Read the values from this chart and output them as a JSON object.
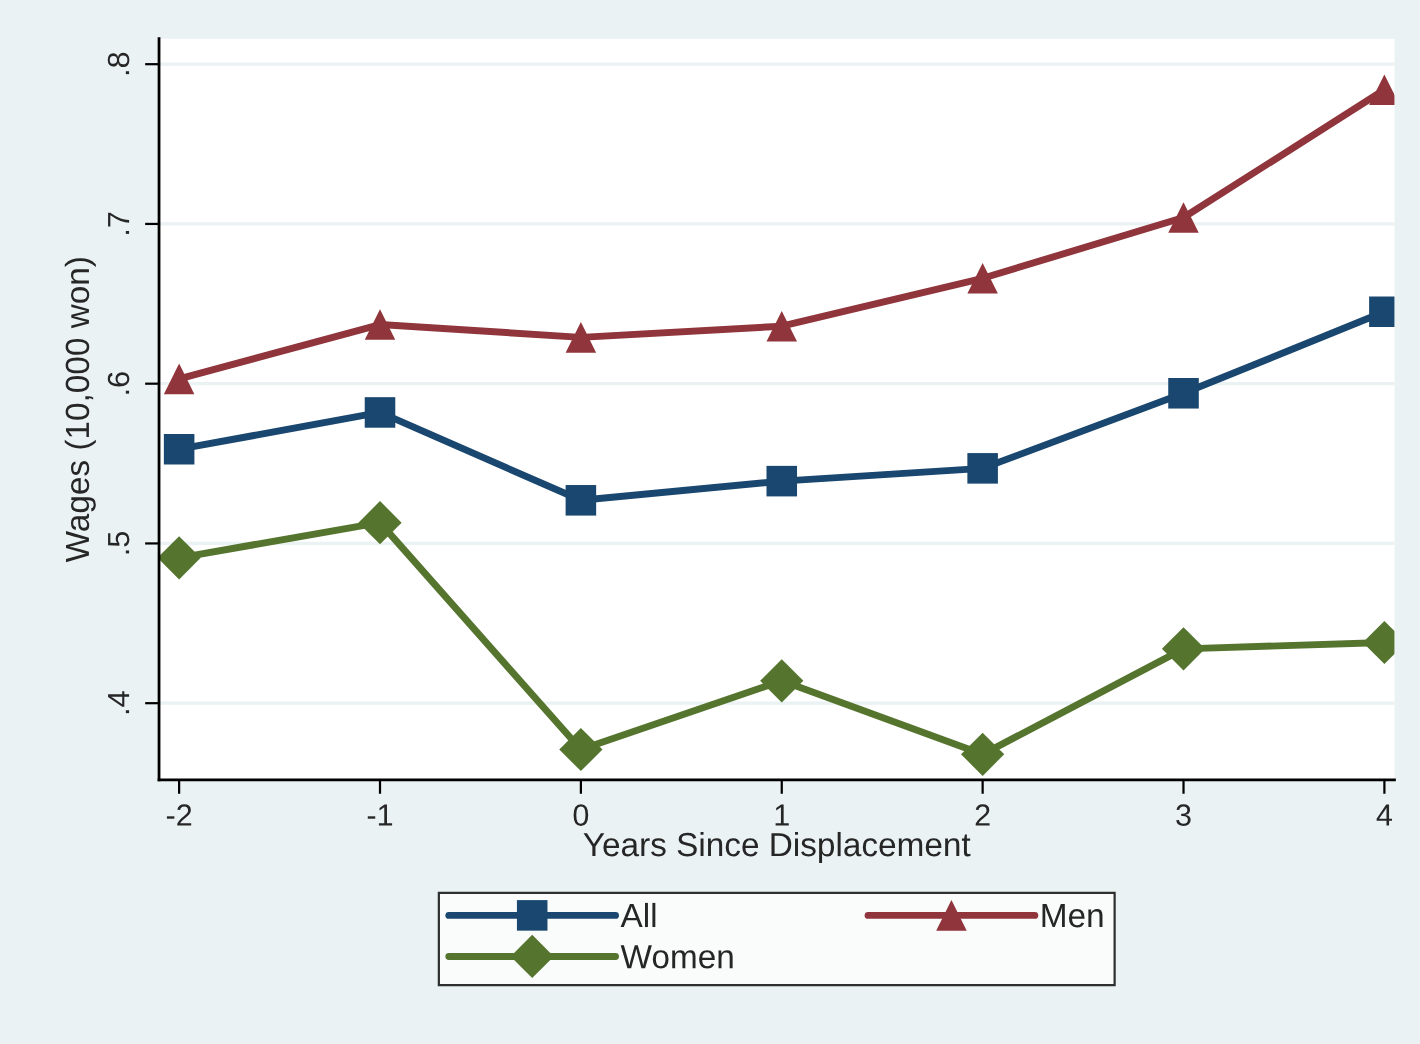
{
  "chart_data": {
    "type": "line",
    "xlabel": "Years Since Displacement",
    "ylabel": "Wages (10,000 won)",
    "x": [
      -2,
      -1,
      0,
      1,
      2,
      3,
      4
    ],
    "series": [
      {
        "name": "All",
        "color": "#1a476f",
        "marker": "square",
        "values": [
          0.559,
          0.582,
          0.527,
          0.539,
          0.547,
          0.594,
          0.645
        ]
      },
      {
        "name": "Men",
        "color": "#90353b",
        "marker": "triangle",
        "values": [
          0.603,
          0.637,
          0.629,
          0.636,
          0.666,
          0.704,
          0.784
        ]
      },
      {
        "name": "Women",
        "color": "#55752f",
        "marker": "diamond",
        "values": [
          0.491,
          0.513,
          0.371,
          0.414,
          0.368,
          0.434,
          0.438
        ]
      }
    ],
    "xlim": [
      -2.1,
      4.05
    ],
    "ylim": [
      0.352,
      0.816
    ],
    "xticks": [
      -2,
      -1,
      0,
      1,
      2,
      3,
      4
    ],
    "yticks": [
      {
        "value": 0.4,
        "label": ".4"
      },
      {
        "value": 0.5,
        "label": ".5"
      },
      {
        "value": 0.6,
        "label": ".6"
      },
      {
        "value": 0.7,
        "label": ".7"
      },
      {
        "value": 0.8,
        "label": ".8"
      }
    ],
    "grid": "y",
    "legend": "bottom",
    "line_style": "solid"
  }
}
